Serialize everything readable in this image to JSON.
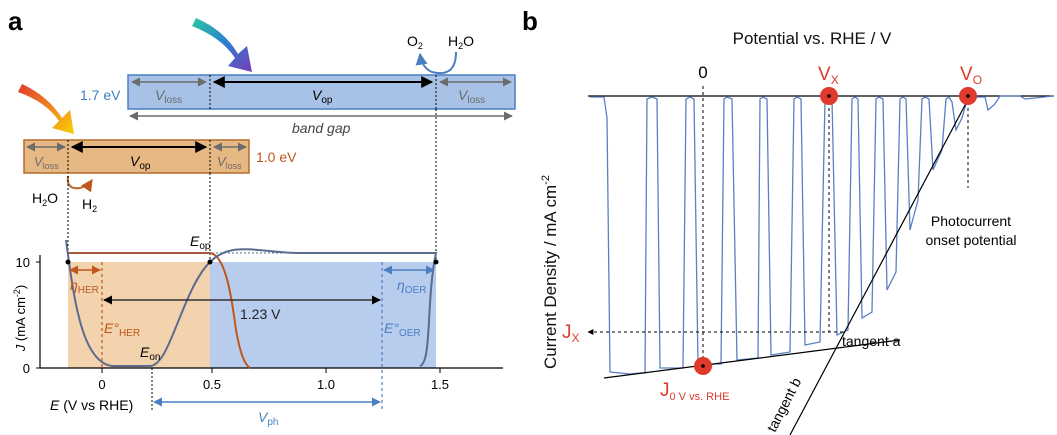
{
  "colors": {
    "blue_box": "#a7c2e6",
    "blue_edge": "#4a7fc1",
    "blue_text": "#3f7fc1",
    "orange_box": "#e6b883",
    "orange_edge": "#b56a2a",
    "orange_text": "#c0561d",
    "red": "#e03a2c",
    "gray": "#6b6b6b",
    "curve_blue": "#5a7fc4"
  },
  "panel_a": {
    "label": "a",
    "wide_gap": {
      "energy": "1.7 eV",
      "v_loss": "V",
      "v_loss_sub": "loss",
      "v_op": "V",
      "v_op_sub": "op",
      "band_gap": "band gap"
    },
    "narrow_gap": {
      "energy": "1.0 eV",
      "v_loss": "V",
      "v_loss_sub": "loss",
      "v_op": "V",
      "v_op_sub": "op"
    },
    "oer_reaction": {
      "product": "O",
      "product_sub": "2",
      "reactant": "H",
      "reactant_sub": "2",
      "reactant_tail": "O"
    },
    "her_reaction": {
      "reactant": "H",
      "reactant_sub": "2",
      "reactant_tail": "O",
      "product": "H",
      "product_sub": "2"
    },
    "axis": {
      "ylabel_j": "J",
      "ylabel_unit": "(mA cm",
      "ylabel_exp": "-2",
      "ylabel_close": ")",
      "xlabel_e": "E",
      "xlabel_unit": "(V vs RHE)",
      "y_ticks": [
        "0",
        "10"
      ],
      "x_ticks": [
        "0",
        "0.5",
        "1.0",
        "1.5"
      ]
    },
    "annotations": {
      "e_op": "E",
      "e_op_sub": "op",
      "e_on": "E",
      "e_on_sub": "on",
      "eta_her": "η",
      "eta_her_sub": "HER",
      "eta_oer": "η",
      "eta_oer_sub": "OER",
      "e_her": "E°",
      "e_her_sub": "HER",
      "e_oer": "E°",
      "e_oer_sub": "OER",
      "span_123": "1.23 V",
      "v_ph": "V",
      "v_ph_sub": "ph"
    }
  },
  "panel_b": {
    "label": "b",
    "top_axis_title": "Potential vs. RHE / V",
    "ylabel": "Current Density / mA cm",
    "ylabel_exp": "-2",
    "zero": "0",
    "vx": "V",
    "vx_sub": "X",
    "vo": "V",
    "vo_sub": "O",
    "jx": "J",
    "jx_sub": "X",
    "j0": "J",
    "j0_sub": "0 V vs. RHE",
    "onset_line1": "Photocurrent",
    "onset_line2": "onset potential",
    "tangent_a": "tangent a",
    "tangent_b": "tangent b"
  }
}
